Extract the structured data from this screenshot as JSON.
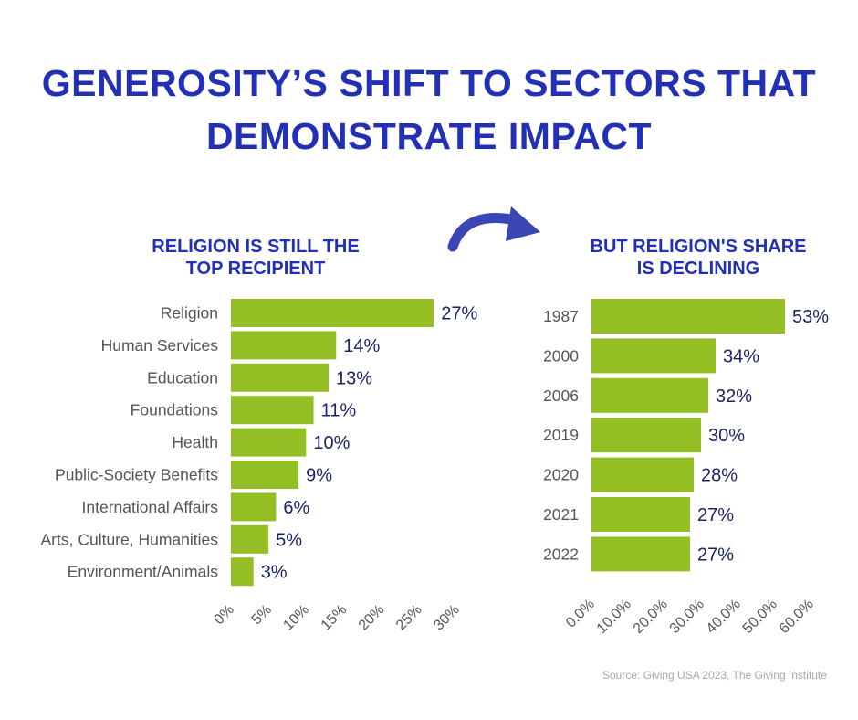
{
  "title_line1": "GENEROSITY’S SHIFT TO SECTORS THAT",
  "title_line2": "DEMONSTRATE IMPACT",
  "source": "Source: Giving USA 2023, The Giving Institute",
  "colors": {
    "title": "#2130b4",
    "bar": "#94bf24",
    "value_label": "#1c2469",
    "category_label": "#555555",
    "source": "#a7a7ad",
    "arrow": "#3a46b3"
  },
  "arrow_icon": "curved-arrow-icon",
  "chart_data": [
    {
      "type": "bar",
      "orientation": "horizontal",
      "subtitle_lines": [
        "RELIGION IS STILL THE",
        "TOP RECIPIENT"
      ],
      "categories": [
        "Religion",
        "Human Services",
        "Education",
        "Foundations",
        "Health",
        "Public-Society Benefits",
        "International Affairs",
        "Arts, Culture, Humanities",
        "Environment/Animals"
      ],
      "values": [
        27,
        14,
        13,
        11,
        10,
        9,
        6,
        5,
        3
      ],
      "value_labels": [
        "27%",
        "14%",
        "13%",
        "11%",
        "10%",
        "9%",
        "6%",
        "5%",
        "3%"
      ],
      "ticks": [
        0,
        5,
        10,
        15,
        20,
        25,
        30
      ],
      "tick_labels": [
        "0%",
        "5%",
        "10%",
        "15%",
        "20%",
        "25%",
        "30%"
      ],
      "xlim": [
        0,
        30
      ],
      "grid": false
    },
    {
      "type": "bar",
      "orientation": "horizontal",
      "subtitle_lines": [
        "BUT RELIGION'S SHARE",
        "IS DECLINING"
      ],
      "categories": [
        "1987",
        "2000",
        "2006",
        "2019",
        "2020",
        "2021",
        "2022"
      ],
      "values": [
        53,
        34,
        32,
        30,
        28,
        27,
        27
      ],
      "value_labels": [
        "53%",
        "34%",
        "32%",
        "30%",
        "28%",
        "27%",
        "27%"
      ],
      "ticks": [
        0,
        10,
        20,
        30,
        40,
        50,
        60
      ],
      "tick_labels": [
        "0.0%",
        "10.0%",
        "20.0%",
        "30.0%",
        "40.0%",
        "50.0%",
        "60.0%"
      ],
      "xlim": [
        0,
        60
      ],
      "grid": false
    }
  ]
}
